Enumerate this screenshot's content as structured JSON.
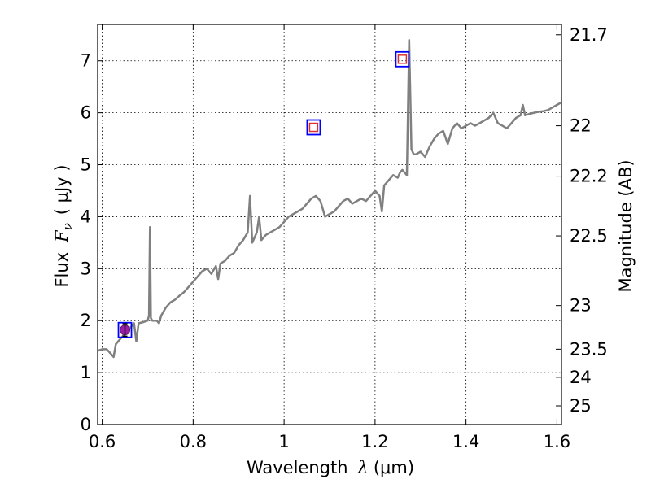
{
  "chart_data": {
    "type": "line",
    "xlabel_text": "Wavelength",
    "xlabel_symbol": "λ",
    "xlabel_unit": "(μm)",
    "ylabel_text": "Flux",
    "ylabel_symbol": "F",
    "ylabel_subscript": "ν",
    "ylabel_unit": "( μJy )",
    "y2label": "Magnitude (AB)",
    "xlim": [
      0.59,
      1.61
    ],
    "ylim": [
      0,
      7.7
    ],
    "xticks": [
      {
        "value": 0.6,
        "label": "0.6"
      },
      {
        "value": 0.8,
        "label": "0.8"
      },
      {
        "value": 1.0,
        "label": "1"
      },
      {
        "value": 1.2,
        "label": "1.2"
      },
      {
        "value": 1.4,
        "label": "1.4"
      },
      {
        "value": 1.6,
        "label": "1.6"
      }
    ],
    "yticks": [
      {
        "value": 0,
        "label": "0"
      },
      {
        "value": 1,
        "label": "1"
      },
      {
        "value": 2,
        "label": "2"
      },
      {
        "value": 3,
        "label": "3"
      },
      {
        "value": 4,
        "label": "4"
      },
      {
        "value": 5,
        "label": "5"
      },
      {
        "value": 6,
        "label": "6"
      },
      {
        "value": 7,
        "label": "7"
      }
    ],
    "y2ticks": [
      {
        "label": "21.7",
        "flux": 7.5
      },
      {
        "label": "22",
        "flux": 5.75
      },
      {
        "label": "22.2",
        "flux": 4.78
      },
      {
        "label": "22.5",
        "flux": 3.63
      },
      {
        "label": "23",
        "flux": 2.29
      },
      {
        "label": "23.5",
        "flux": 1.45
      },
      {
        "label": "24",
        "flux": 0.91
      },
      {
        "label": "25",
        "flux": 0.36
      }
    ],
    "grid": true,
    "grid_style": "dotted",
    "spectrum": {
      "color": "#808080",
      "x": [
        0.59,
        0.6,
        0.61,
        0.62,
        0.625,
        0.63,
        0.64,
        0.65,
        0.66,
        0.67,
        0.675,
        0.68,
        0.69,
        0.7,
        0.703,
        0.705,
        0.707,
        0.71,
        0.72,
        0.725,
        0.73,
        0.74,
        0.75,
        0.76,
        0.77,
        0.78,
        0.79,
        0.8,
        0.81,
        0.82,
        0.83,
        0.84,
        0.85,
        0.855,
        0.86,
        0.87,
        0.88,
        0.89,
        0.9,
        0.91,
        0.92,
        0.925,
        0.93,
        0.935,
        0.94,
        0.945,
        0.95,
        0.955,
        0.96,
        0.97,
        0.98,
        0.99,
        1.0,
        1.01,
        1.02,
        1.03,
        1.04,
        1.05,
        1.06,
        1.07,
        1.08,
        1.09,
        1.1,
        1.11,
        1.12,
        1.13,
        1.14,
        1.15,
        1.16,
        1.17,
        1.18,
        1.19,
        1.2,
        1.21,
        1.215,
        1.22,
        1.23,
        1.24,
        1.25,
        1.255,
        1.26,
        1.27,
        1.275,
        1.28,
        1.285,
        1.29,
        1.3,
        1.31,
        1.32,
        1.33,
        1.34,
        1.35,
        1.36,
        1.37,
        1.38,
        1.39,
        1.4,
        1.41,
        1.42,
        1.43,
        1.44,
        1.45,
        1.46,
        1.47,
        1.48,
        1.49,
        1.5,
        1.51,
        1.52,
        1.525,
        1.53,
        1.54,
        1.55,
        1.56,
        1.57,
        1.58,
        1.59,
        1.6,
        1.61
      ],
      "y": [
        1.42,
        1.45,
        1.45,
        1.35,
        1.3,
        1.55,
        1.65,
        1.75,
        1.85,
        1.95,
        1.6,
        1.95,
        1.97,
        2.0,
        2.1,
        3.8,
        2.05,
        2.0,
        2.0,
        1.95,
        2.1,
        2.25,
        2.35,
        2.4,
        2.48,
        2.55,
        2.65,
        2.75,
        2.85,
        2.95,
        3.0,
        2.9,
        3.05,
        2.8,
        3.1,
        3.15,
        3.25,
        3.3,
        3.45,
        3.55,
        3.7,
        4.4,
        3.5,
        3.6,
        3.7,
        4.0,
        3.55,
        3.6,
        3.65,
        3.7,
        3.75,
        3.8,
        3.9,
        4.0,
        4.05,
        4.1,
        4.15,
        4.25,
        4.35,
        4.4,
        4.3,
        4.0,
        4.05,
        4.1,
        4.2,
        4.3,
        4.35,
        4.25,
        4.3,
        4.35,
        4.3,
        4.4,
        4.5,
        4.4,
        4.1,
        4.6,
        4.7,
        4.8,
        4.75,
        4.85,
        4.9,
        4.8,
        7.4,
        5.3,
        5.2,
        5.2,
        5.25,
        5.15,
        5.35,
        5.5,
        5.6,
        5.65,
        5.4,
        5.7,
        5.8,
        5.7,
        5.75,
        5.8,
        5.75,
        5.8,
        5.85,
        5.9,
        6.0,
        5.8,
        5.75,
        5.7,
        5.8,
        5.9,
        5.95,
        6.15,
        5.95,
        5.98,
        6.0,
        6.02,
        6.03,
        6.05,
        6.1,
        6.15,
        6.2
      ]
    },
    "photometry": [
      {
        "x": 0.65,
        "y": 1.82,
        "box_color": "#0000ff",
        "marker": "filled-circle",
        "marker_color": "#9b1fa6",
        "error": 0.12
      },
      {
        "x": 1.065,
        "y": 5.72,
        "box_color": "#0000ff",
        "marker": "open-square",
        "marker_color": "#e03030"
      },
      {
        "x": 1.26,
        "y": 7.03,
        "box_color": "#0000ff",
        "marker": "open-square",
        "marker_color": "#e03030"
      }
    ]
  }
}
